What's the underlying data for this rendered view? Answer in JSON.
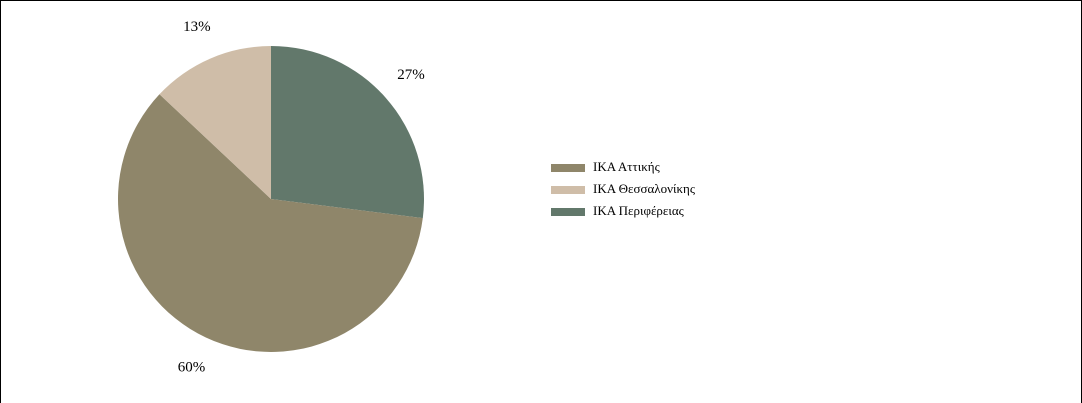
{
  "chart_data": {
    "type": "pie",
    "categories": [
      "ΙΚΑ Αττικής",
      "ΙΚΑ Θεσσαλονίκης",
      "ΙΚΑ Περιφέρειας"
    ],
    "values": [
      60,
      13,
      27
    ],
    "value_labels": [
      "60%",
      "13%",
      "27%"
    ],
    "colors": [
      "#8f866a",
      "#cfbda8",
      "#62786b"
    ],
    "legend": "right"
  }
}
